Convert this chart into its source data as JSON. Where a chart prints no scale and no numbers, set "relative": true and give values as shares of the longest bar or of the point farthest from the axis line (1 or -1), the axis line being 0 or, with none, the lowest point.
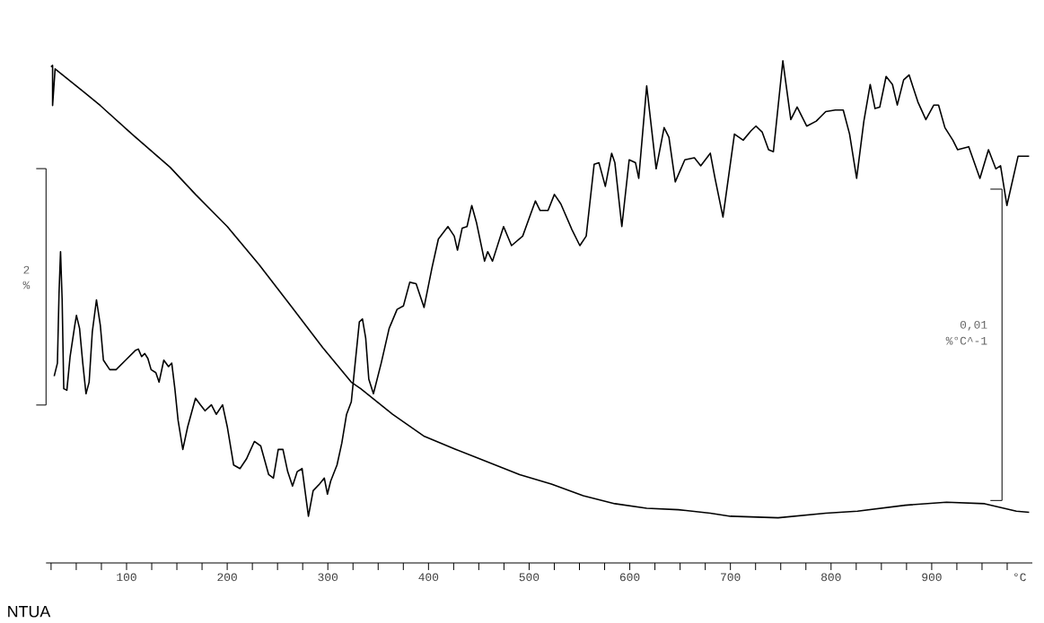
{
  "chart_data": {
    "type": "line",
    "relative": true,
    "xlabel": "°C",
    "xlim": [
      20,
      1000
    ],
    "xticks": [
      {
        "value": 25,
        "label": null
      },
      {
        "value": 50,
        "label": null
      },
      {
        "value": 75,
        "label": null
      },
      100,
      {
        "value": 125,
        "label": null
      },
      {
        "value": 150,
        "label": null
      },
      {
        "value": 175,
        "label": null
      },
      200,
      {
        "value": 225,
        "label": null
      },
      {
        "value": 250,
        "label": null
      },
      {
        "value": 275,
        "label": null
      },
      300,
      {
        "value": 325,
        "label": null
      },
      {
        "value": 350,
        "label": null
      },
      {
        "value": 375,
        "label": null
      },
      400,
      {
        "value": 425,
        "label": null
      },
      {
        "value": 450,
        "label": null
      },
      {
        "value": 475,
        "label": null
      },
      500,
      {
        "value": 525,
        "label": null
      },
      {
        "value": 550,
        "label": null
      },
      {
        "value": 575,
        "label": null
      },
      600,
      {
        "value": 625,
        "label": null
      },
      {
        "value": 650,
        "label": null
      },
      {
        "value": 675,
        "label": null
      },
      700,
      {
        "value": 725,
        "label": null
      },
      {
        "value": 750,
        "label": null
      },
      {
        "value": 775,
        "label": null
      },
      800,
      {
        "value": 825,
        "label": null
      },
      {
        "value": 850,
        "label": null
      },
      {
        "value": 875,
        "label": null
      },
      900,
      {
        "value": 925,
        "label": null
      },
      {
        "value": 950,
        "label": null
      },
      {
        "value": 975,
        "label": null
      }
    ],
    "series": [
      {
        "color": "#000000",
        "x": [
          24.9,
          26.5,
          26.5,
          29.0,
          58.1,
          73.9,
          105.4,
          143.3,
          168.5,
          200.1,
          231.7,
          263.3,
          294.9,
          323.3,
          332.7,
          364.3,
          395.9,
          427.4,
          459.0,
          490.6,
          522.1,
          553.7,
          585.2,
          616.8,
          648.4,
          680.0,
          700.1,
          747.4,
          794.7,
          826.3,
          873.7,
          914.7,
          952.6,
          984.1,
          996.8
        ],
        "values": [
          0.988,
          0.991,
          0.911,
          0.984,
          0.937,
          0.911,
          0.854,
          0.788,
          0.734,
          0.67,
          0.594,
          0.512,
          0.429,
          0.36,
          0.347,
          0.296,
          0.252,
          0.226,
          0.201,
          0.176,
          0.157,
          0.134,
          0.118,
          0.109,
          0.106,
          0.099,
          0.093,
          0.09,
          0.099,
          0.103,
          0.115,
          0.121,
          0.118,
          0.103,
          0.101
        ]
      },
      {
        "color": "#000000",
        "x": [
          28.1,
          31.3,
          32.9,
          34.4,
          36.0,
          37.6,
          40.7,
          43.9,
          48.6,
          50.2,
          53.3,
          56.5,
          59.7,
          62.8,
          66.0,
          70.1,
          73.9,
          77.0,
          83.3,
          89.6,
          99.1,
          108.6,
          111.7,
          114.9,
          118.1,
          121.2,
          124.4,
          129.1,
          132.3,
          137.0,
          141.7,
          144.9,
          148.0,
          151.2,
          155.9,
          160.7,
          168.5,
          173.3,
          178.0,
          184.3,
          189.1,
          195.4,
          200.1,
          206.4,
          212.7,
          219.1,
          227.0,
          233.3,
          241.2,
          245.9,
          250.7,
          255.4,
          260.1,
          264.9,
          269.6,
          274.4,
          280.7,
          285.4,
          291.7,
          296.5,
          299.6,
          302.8,
          309.1,
          313.9,
          318.6,
          323.3,
          326.5,
          331.3,
          334.4,
          337.6,
          340.7,
          345.3,
          353.0,
          360.9,
          368.8,
          375.1,
          381.4,
          387.7,
          395.6,
          403.5,
          409.8,
          419.3,
          425.6,
          428.8,
          433.5,
          438.3,
          443.0,
          447.8,
          455.7,
          458.8,
          463.6,
          474.6,
          482.5,
          493.6,
          506.2,
          510.9,
          518.8,
          525.1,
          531.5,
          542.5,
          550.4,
          556.7,
          564.6,
          569.4,
          575.7,
          582.0,
          585.2,
          592.1,
          599.4,
          605.7,
          608.9,
          616.8,
          626.2,
          634.1,
          638.9,
          645.2,
          654.7,
          664.2,
          670.5,
          680.0,
          684.7,
          692.6,
          704.0,
          712.7,
          720.6,
          725.3,
          731.6,
          737.9,
          742.7,
          752.1,
          760.0,
          766.3,
          775.8,
          785.3,
          794.7,
          804.2,
          812.1,
          818.4,
          825.4,
          832.6,
          838.9,
          843.7,
          848.4,
          854.7,
          861.0,
          865.8,
          872.1,
          877.5,
          886.3,
          894.2,
          902.1,
          906.8,
          913.1,
          921.0,
          925.8,
          936.8,
          947.9,
          956.4,
          963.7,
          968.4,
          974.7,
          985.8,
          996.8
        ],
        "values": [
          0.372,
          0.398,
          0.537,
          0.62,
          0.524,
          0.347,
          0.344,
          0.411,
          0.474,
          0.493,
          0.467,
          0.398,
          0.337,
          0.36,
          0.461,
          0.524,
          0.474,
          0.404,
          0.385,
          0.385,
          0.404,
          0.423,
          0.426,
          0.411,
          0.417,
          0.407,
          0.385,
          0.379,
          0.36,
          0.404,
          0.391,
          0.398,
          0.347,
          0.284,
          0.226,
          0.271,
          0.328,
          0.315,
          0.303,
          0.315,
          0.296,
          0.315,
          0.271,
          0.195,
          0.188,
          0.207,
          0.242,
          0.233,
          0.176,
          0.169,
          0.226,
          0.226,
          0.182,
          0.153,
          0.182,
          0.188,
          0.093,
          0.144,
          0.157,
          0.169,
          0.137,
          0.163,
          0.195,
          0.239,
          0.296,
          0.321,
          0.385,
          0.48,
          0.486,
          0.448,
          0.366,
          0.337,
          0.398,
          0.467,
          0.505,
          0.512,
          0.559,
          0.556,
          0.509,
          0.588,
          0.645,
          0.67,
          0.651,
          0.623,
          0.667,
          0.67,
          0.712,
          0.677,
          0.601,
          0.62,
          0.601,
          0.67,
          0.632,
          0.651,
          0.721,
          0.702,
          0.702,
          0.734,
          0.715,
          0.664,
          0.632,
          0.651,
          0.794,
          0.797,
          0.75,
          0.816,
          0.797,
          0.67,
          0.803,
          0.797,
          0.766,
          0.95,
          0.785,
          0.867,
          0.848,
          0.759,
          0.803,
          0.807,
          0.791,
          0.816,
          0.766,
          0.689,
          0.854,
          0.842,
          0.861,
          0.87,
          0.858,
          0.823,
          0.819,
          1.0,
          0.883,
          0.908,
          0.87,
          0.88,
          0.899,
          0.902,
          0.902,
          0.854,
          0.766,
          0.88,
          0.953,
          0.905,
          0.908,
          0.969,
          0.953,
          0.912,
          0.962,
          0.972,
          0.918,
          0.883,
          0.912,
          0.912,
          0.867,
          0.842,
          0.823,
          0.829,
          0.766,
          0.823,
          0.785,
          0.791,
          0.712,
          0.81,
          0.81
        ]
      }
    ],
    "annotations": [
      "2 %",
      "0,01 %°C^-1",
      "NTUA"
    ]
  }
}
